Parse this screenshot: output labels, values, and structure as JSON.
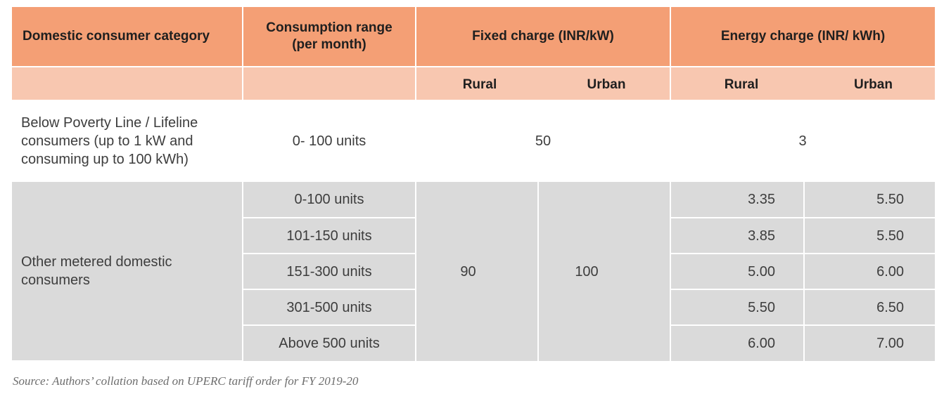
{
  "table": {
    "headers": {
      "category": "Domestic consumer category",
      "consumption": "Consumption range (per month)",
      "fixed_charge": "Fixed charge (INR/kW)",
      "energy_charge": "Energy charge (INR/ kWh)",
      "fixed_rural": "Rural",
      "fixed_urban": "Urban",
      "energy_rural": "Rural",
      "energy_urban": "Urban"
    },
    "bpl": {
      "category": "Below Poverty Line / Lifeline consumers (up to 1 kW and consuming up to 100 kWh)",
      "range": "0- 100 units",
      "fixed": "50",
      "energy": "3"
    },
    "other_metered": {
      "category": "Other metered domestic consumers",
      "fixed_rural": "90",
      "fixed_urban": "100",
      "rows": [
        {
          "range": "0-100 units",
          "energy_rural": "3.35",
          "energy_urban": "5.50"
        },
        {
          "range": "101-150 units",
          "energy_rural": "3.85",
          "energy_urban": "5.50"
        },
        {
          "range": "151-300 units",
          "energy_rural": "5.00",
          "energy_urban": "6.00"
        },
        {
          "range": "301-500 units",
          "energy_rural": "5.50",
          "energy_urban": "6.50"
        },
        {
          "range": "Above 500 units",
          "energy_rural": "6.00",
          "energy_urban": "7.00"
        }
      ]
    }
  },
  "source": "Source: Authors’ collation based on UPERC tariff order for FY 2019-20"
}
